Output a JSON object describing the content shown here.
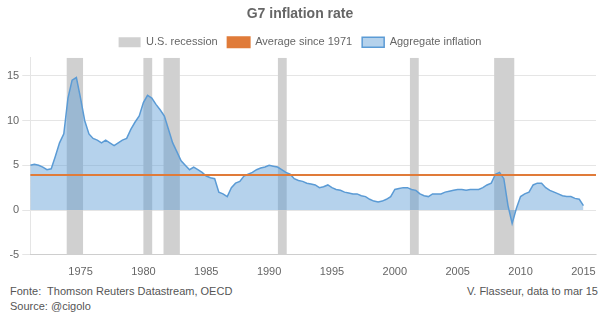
{
  "chart_data": {
    "type": "line",
    "title": "G7 inflation rate",
    "x": [
      1971.0,
      1971.33,
      1971.67,
      1972.0,
      1972.33,
      1972.67,
      1973.0,
      1973.33,
      1973.67,
      1974.0,
      1974.33,
      1974.67,
      1975.0,
      1975.33,
      1975.67,
      1976.0,
      1976.33,
      1976.67,
      1977.0,
      1977.33,
      1977.67,
      1978.0,
      1978.33,
      1978.67,
      1979.0,
      1979.33,
      1979.67,
      1980.0,
      1980.33,
      1980.67,
      1981.0,
      1981.33,
      1981.67,
      1982.0,
      1982.33,
      1982.67,
      1983.0,
      1983.33,
      1983.67,
      1984.0,
      1984.33,
      1984.67,
      1985.0,
      1985.33,
      1985.67,
      1986.0,
      1986.33,
      1986.67,
      1987.0,
      1987.33,
      1987.67,
      1988.0,
      1988.33,
      1988.67,
      1989.0,
      1989.33,
      1989.67,
      1990.0,
      1990.33,
      1990.67,
      1991.0,
      1991.33,
      1991.67,
      1992.0,
      1992.33,
      1992.67,
      1993.0,
      1993.33,
      1993.67,
      1994.0,
      1994.33,
      1994.67,
      1995.0,
      1995.33,
      1995.67,
      1996.0,
      1996.33,
      1996.67,
      1997.0,
      1997.33,
      1997.67,
      1998.0,
      1998.33,
      1998.67,
      1999.0,
      1999.33,
      1999.67,
      2000.0,
      2000.33,
      2000.67,
      2001.0,
      2001.33,
      2001.67,
      2002.0,
      2002.33,
      2002.67,
      2003.0,
      2003.33,
      2003.67,
      2004.0,
      2004.33,
      2004.67,
      2005.0,
      2005.33,
      2005.67,
      2006.0,
      2006.33,
      2006.67,
      2007.0,
      2007.33,
      2007.67,
      2008.0,
      2008.33,
      2008.67,
      2009.0,
      2009.33,
      2009.67,
      2010.0,
      2010.33,
      2010.67,
      2011.0,
      2011.33,
      2011.67,
      2012.0,
      2012.33,
      2012.67,
      2013.0,
      2013.33,
      2013.67,
      2014.0,
      2014.33,
      2014.67,
      2015.0
    ],
    "series": [
      {
        "name": "Aggregate inflation",
        "color": "#5b9bd5",
        "values": [
          5.0,
          5.1,
          5.0,
          4.8,
          4.5,
          4.6,
          6.0,
          7.5,
          8.5,
          12.5,
          14.5,
          14.8,
          12.5,
          10.0,
          8.5,
          8.0,
          7.8,
          7.5,
          7.8,
          7.5,
          7.2,
          7.5,
          7.8,
          8.0,
          9.0,
          9.8,
          10.5,
          12.0,
          12.8,
          12.5,
          11.8,
          11.2,
          10.5,
          9.0,
          7.5,
          6.5,
          5.5,
          5.0,
          4.5,
          4.8,
          4.5,
          4.2,
          3.8,
          3.6,
          3.5,
          2.0,
          1.8,
          1.5,
          2.5,
          3.0,
          3.2,
          3.8,
          4.0,
          4.2,
          4.5,
          4.7,
          4.8,
          5.0,
          4.9,
          4.8,
          4.5,
          4.2,
          4.0,
          3.5,
          3.3,
          3.2,
          3.0,
          2.9,
          2.8,
          2.5,
          2.6,
          2.8,
          2.5,
          2.3,
          2.2,
          2.0,
          1.9,
          1.8,
          1.8,
          1.6,
          1.5,
          1.2,
          1.0,
          0.9,
          1.0,
          1.2,
          1.5,
          2.3,
          2.4,
          2.5,
          2.5,
          2.3,
          2.2,
          1.8,
          1.6,
          1.5,
          1.8,
          1.8,
          1.8,
          2.0,
          2.1,
          2.2,
          2.3,
          2.3,
          2.2,
          2.3,
          2.3,
          2.3,
          2.5,
          2.8,
          3.0,
          4.0,
          4.2,
          3.5,
          0.5,
          -1.5,
          0.2,
          1.5,
          1.8,
          2.0,
          2.8,
          3.0,
          3.0,
          2.5,
          2.2,
          2.0,
          1.8,
          1.6,
          1.5,
          1.5,
          1.3,
          1.2,
          0.5
        ]
      }
    ],
    "reference_lines": [
      {
        "name": "Average since 1971",
        "value": 3.9,
        "color": "#e07b39"
      }
    ],
    "bands": [
      {
        "name": "U.S. recession",
        "color": "#d0d0d0",
        "ranges": [
          [
            1973.9,
            1975.2
          ],
          [
            1980.0,
            1980.7
          ],
          [
            1981.6,
            1982.9
          ],
          [
            1990.7,
            1991.4
          ],
          [
            2001.2,
            2001.9
          ],
          [
            2007.9,
            2009.5
          ]
        ]
      }
    ],
    "xlim": [
      1971,
      2016
    ],
    "xticks": [
      1975,
      1980,
      1985,
      1990,
      1995,
      2000,
      2005,
      2010,
      2015
    ],
    "ylim": [
      -5,
      17
    ],
    "yticks": [
      -5,
      0,
      5,
      10,
      15
    ],
    "grid": "y",
    "legend": "top",
    "annotations": [
      "Fonte:  Thomson Reuters Datastream, OECD",
      "V. Flasseur, data to mar 15",
      "Source: @cigolo"
    ]
  }
}
